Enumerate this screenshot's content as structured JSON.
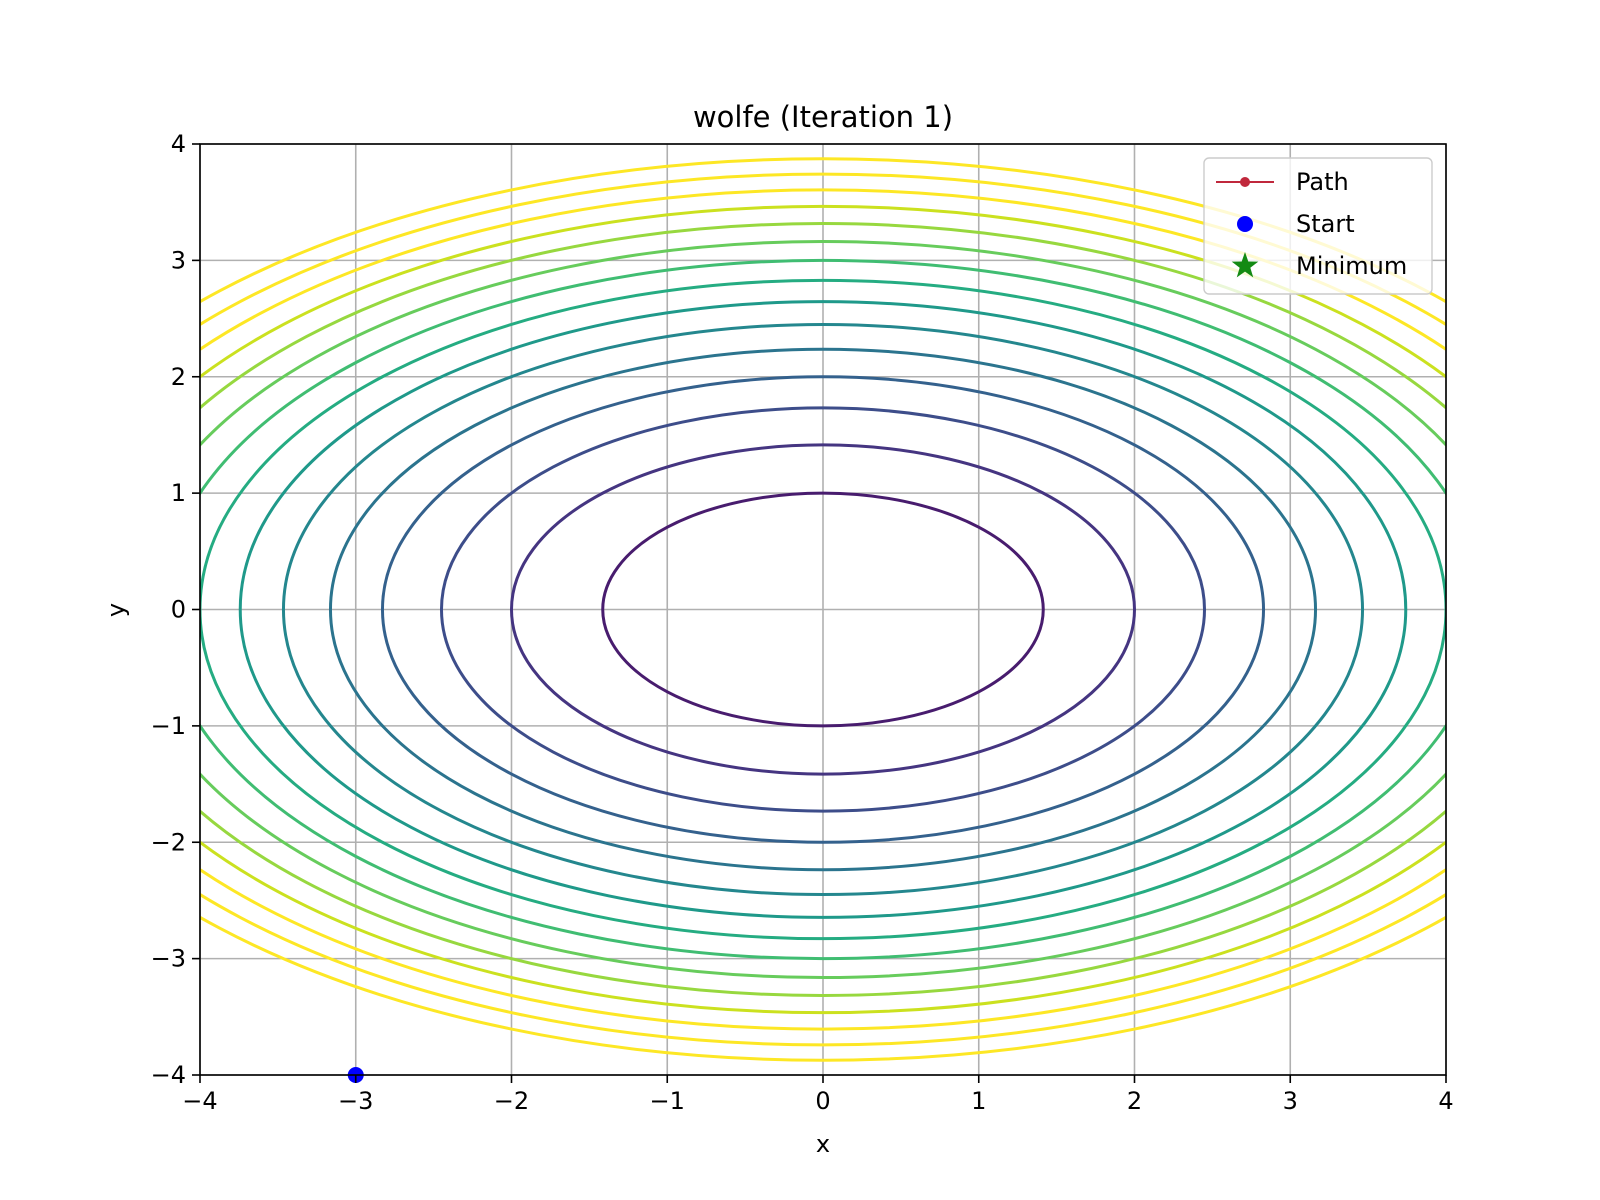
{
  "chart_data": {
    "type": "contour",
    "title": "wolfe (Iteration 1)",
    "xlabel": "x",
    "ylabel": "y",
    "xlim": [
      -4,
      4
    ],
    "ylim": [
      -4,
      4
    ],
    "xticks": [
      -4,
      -3,
      -2,
      -1,
      0,
      1,
      2,
      3,
      4
    ],
    "yticks": [
      -4,
      -3,
      -2,
      -1,
      0,
      1,
      2,
      3,
      4
    ],
    "xtick_labels": [
      "−4",
      "−3",
      "−2",
      "−1",
      "0",
      "1",
      "2",
      "3",
      "4"
    ],
    "ytick_labels": [
      "−4",
      "−3",
      "−2",
      "−1",
      "0",
      "1",
      "2",
      "3",
      "4"
    ],
    "grid": true,
    "colormap": "viridis",
    "function": "x^2/2 + y^2",
    "contour_levels": [
      1,
      2,
      3,
      4,
      5,
      6,
      7,
      8,
      9,
      10,
      11,
      12,
      13,
      14,
      15
    ],
    "contour_colors": [
      "#481c6e",
      "#453581",
      "#3d4d8a",
      "#34618d",
      "#2b748e",
      "#24878e",
      "#1f998a",
      "#25ac82",
      "#40bd72",
      "#67cc5c",
      "#97d83f",
      "#cbe11f",
      "#fde725",
      "#fde725",
      "#fde725"
    ],
    "path": {
      "name": "Path",
      "color": "#c0283c",
      "x": [
        -3
      ],
      "y": [
        -4
      ]
    },
    "start": {
      "name": "Start",
      "color": "#0000ff",
      "x": -3,
      "y": -4
    },
    "minimum": {
      "name": "Minimum",
      "color": "#138a13"
    },
    "legend": {
      "position": "upper-right",
      "entries": [
        "Path",
        "Start",
        "Minimum"
      ]
    }
  }
}
